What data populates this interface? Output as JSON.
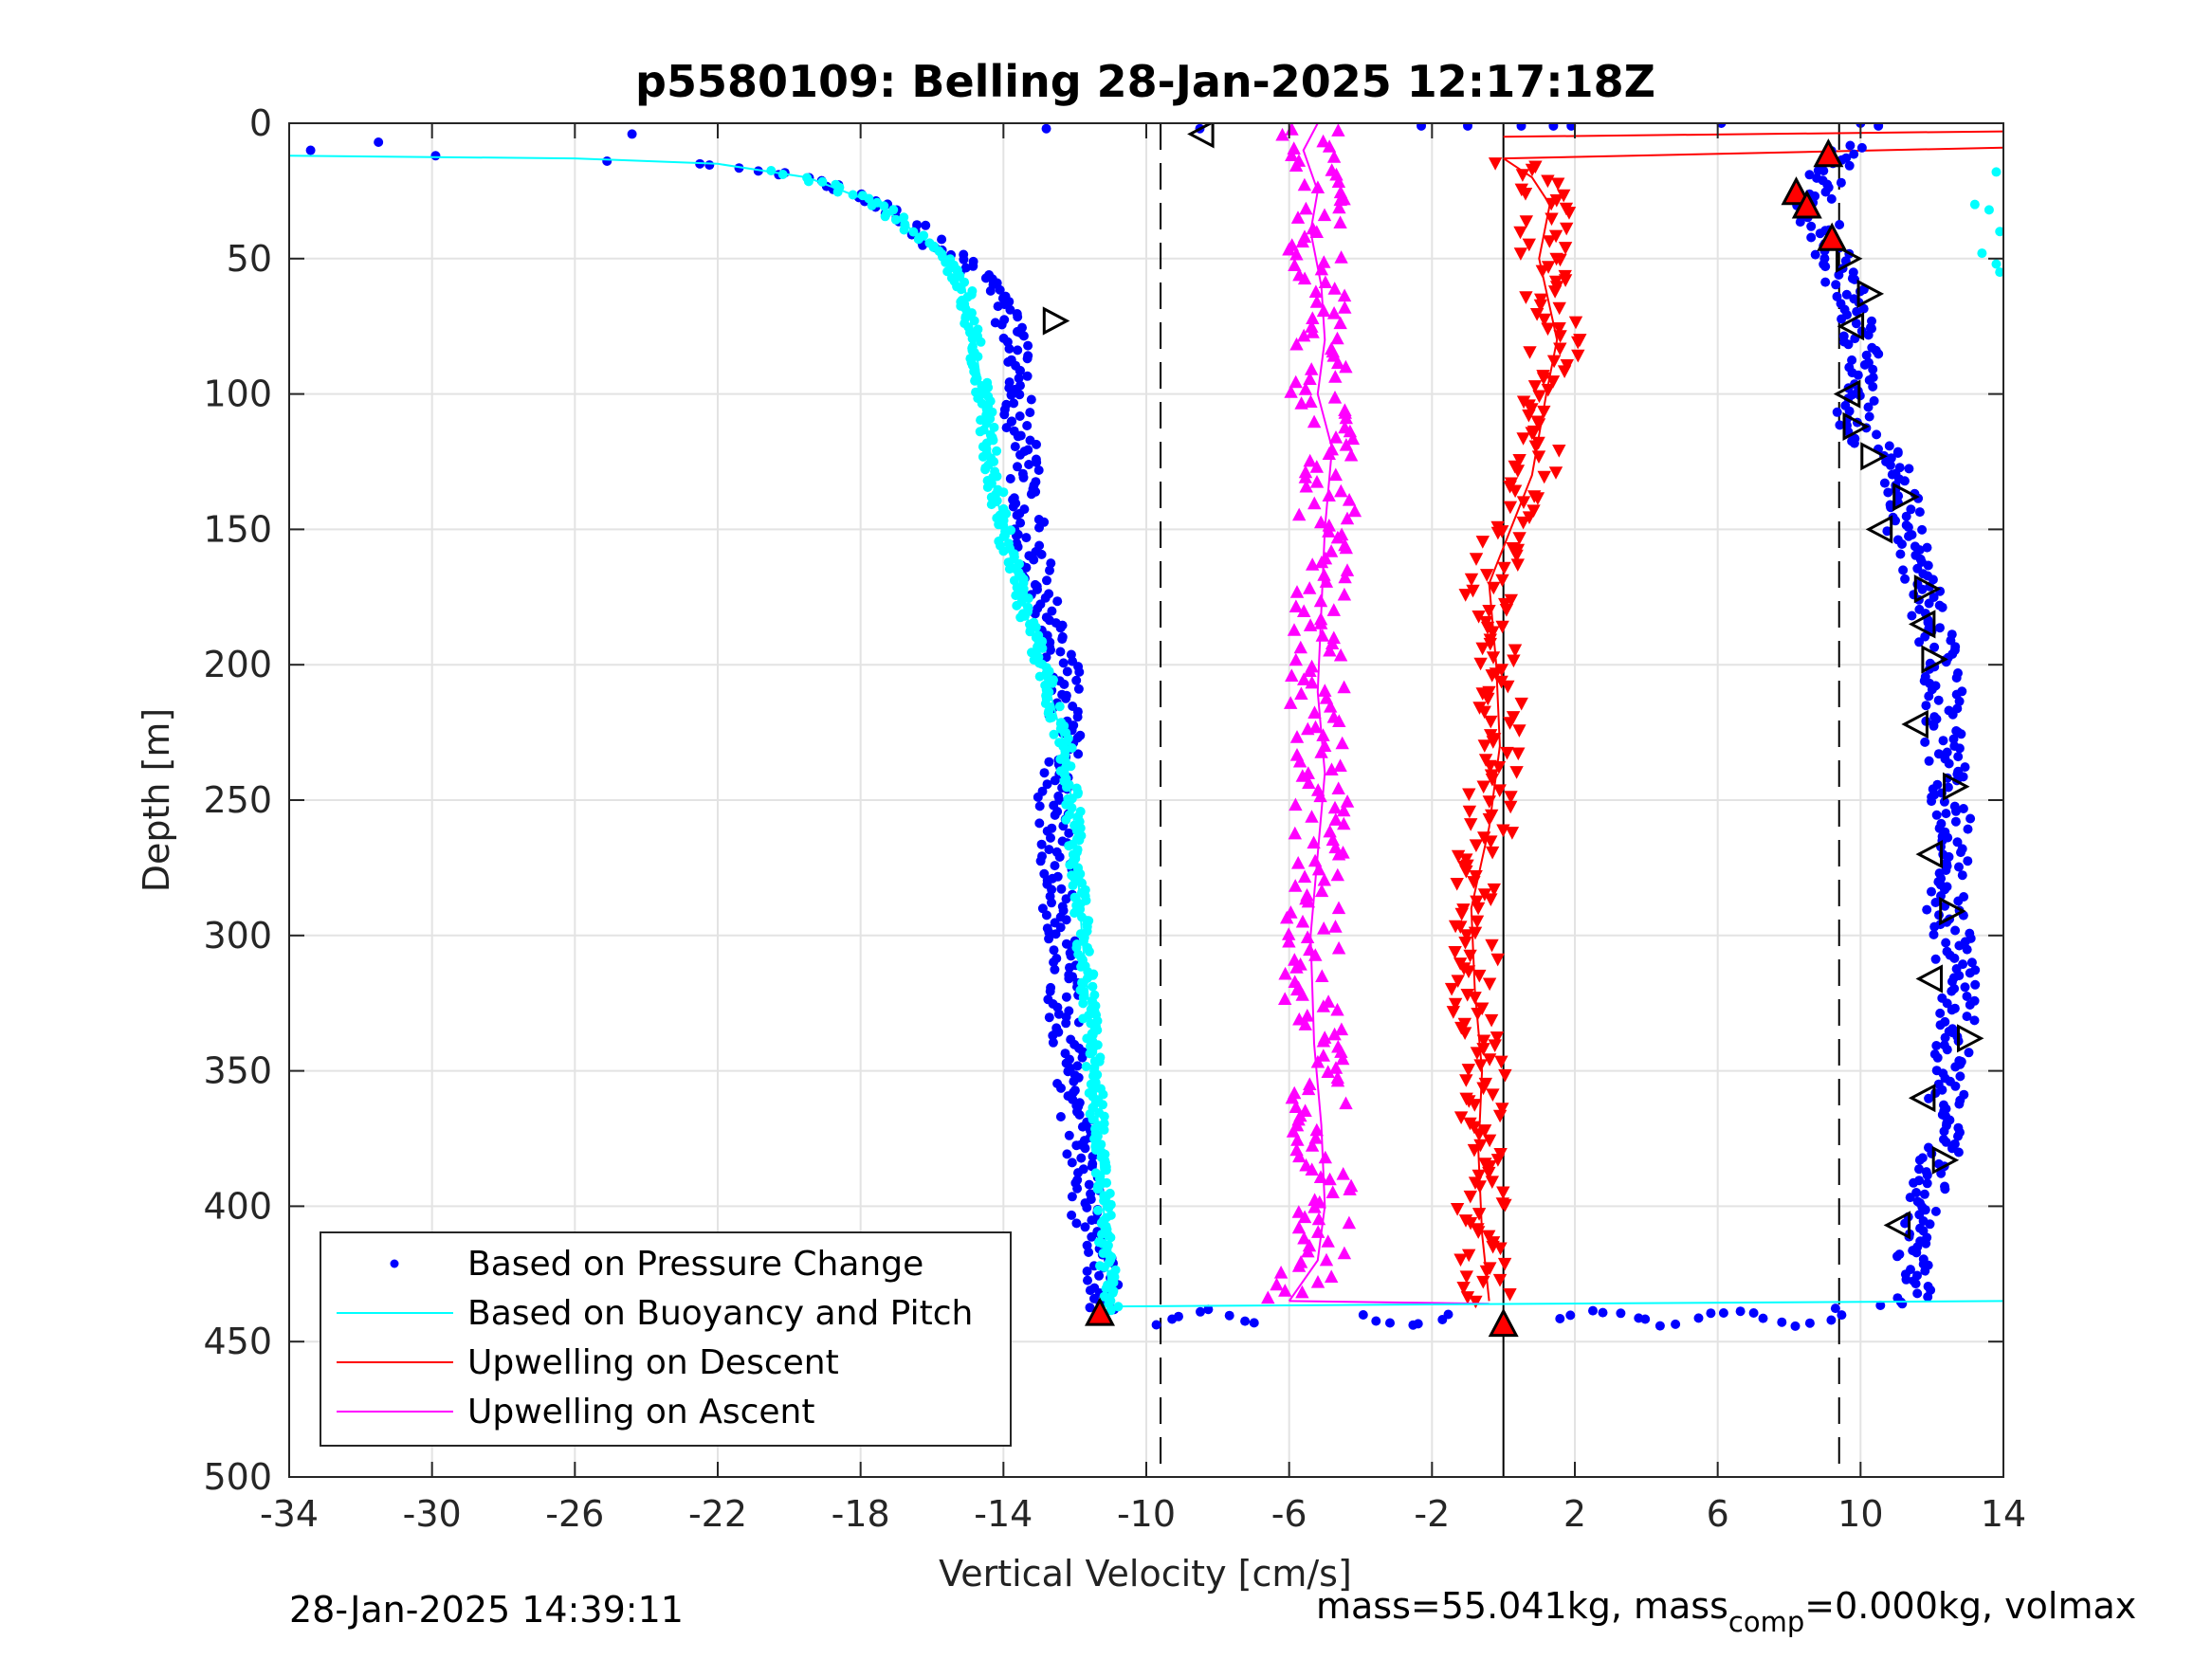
{
  "chart_data": {
    "type": "scatter",
    "title": "p5580109: Belling 28-Jan-2025 12:17:18Z",
    "xlabel": "Vertical Velocity [cm/s]",
    "ylabel": "Depth [m]",
    "xlim": [
      -34,
      14
    ],
    "ylim": [
      0,
      500
    ],
    "y_reversed": true,
    "grid": true,
    "legend_position": "bottom-left",
    "x_ticks": [
      "-34",
      "-30",
      "-26",
      "-22",
      "-18",
      "-14",
      "-10",
      "-6",
      "-2",
      "2",
      "6",
      "10",
      "14"
    ],
    "y_ticks": [
      "0",
      "50",
      "100",
      "150",
      "200",
      "250",
      "300",
      "350",
      "400",
      "450",
      "500"
    ],
    "reference_lines": [
      {
        "style": "dashed",
        "x": -9.6
      },
      {
        "style": "dashed",
        "x": 9.4
      },
      {
        "style": "solid",
        "x": 0
      }
    ],
    "series": [
      {
        "name": "Based on Pressure Change",
        "color": "#0000ff",
        "marker": "dot",
        "descent_profile": [
          [
            0,
            -34
          ],
          [
            10,
            -33.4
          ],
          [
            13,
            -30
          ],
          [
            14,
            -25
          ],
          [
            15,
            -22.5
          ],
          [
            20,
            -19.5
          ],
          [
            30,
            -17.5
          ],
          [
            45,
            -15.8
          ],
          [
            60,
            -14.2
          ],
          [
            75,
            -13.8
          ],
          [
            100,
            -13.6
          ],
          [
            130,
            -13.4
          ],
          [
            150,
            -13.3
          ],
          [
            180,
            -12.8
          ],
          [
            200,
            -12.3
          ],
          [
            230,
            -12.3
          ],
          [
            250,
            -12.6
          ],
          [
            280,
            -12.5
          ],
          [
            300,
            -12.4
          ],
          [
            330,
            -12.3
          ],
          [
            360,
            -12.0
          ],
          [
            400,
            -11.7
          ],
          [
            430,
            -11.2
          ],
          [
            440,
            -11.2
          ]
        ],
        "ascent_profile": [
          [
            440,
            8
          ],
          [
            435,
            11.5
          ],
          [
            410,
            11.6
          ],
          [
            380,
            12.2
          ],
          [
            350,
            12.5
          ],
          [
            320,
            12.8
          ],
          [
            290,
            12.4
          ],
          [
            260,
            12.6
          ],
          [
            230,
            12.3
          ],
          [
            200,
            12.3
          ],
          [
            175,
            11.8
          ],
          [
            150,
            11.2
          ],
          [
            130,
            11.2
          ],
          [
            110,
            9.8
          ],
          [
            95,
            10.2
          ],
          [
            75,
            10.0
          ],
          [
            55,
            9.4
          ],
          [
            40,
            9.0
          ],
          [
            30,
            8.6
          ],
          [
            15,
            9.3
          ],
          [
            5,
            10.0
          ],
          [
            0,
            10.2
          ]
        ]
      },
      {
        "name": "Based on Buoyancy and Pitch",
        "color": "#00ffff",
        "marker": "line+dot",
        "profile": [
          [
            12,
            -34
          ],
          [
            13,
            -26
          ],
          [
            15,
            -22
          ],
          [
            20,
            -19.5
          ],
          [
            30,
            -17.5
          ],
          [
            45,
            -16
          ],
          [
            60,
            -15.1
          ],
          [
            80,
            -14.8
          ],
          [
            100,
            -14.6
          ],
          [
            130,
            -14.3
          ],
          [
            150,
            -14.0
          ],
          [
            180,
            -13.4
          ],
          [
            200,
            -12.9
          ],
          [
            230,
            -12.3
          ],
          [
            260,
            -12.0
          ],
          [
            300,
            -11.8
          ],
          [
            340,
            -11.5
          ],
          [
            380,
            -11.3
          ],
          [
            420,
            -11.1
          ],
          [
            438,
            -11.0
          ]
        ],
        "bottom_turn": [
          [
            437,
            -11
          ],
          [
            435,
            14
          ]
        ]
      },
      {
        "name": "Upwelling on Descent",
        "color": "#ff0000",
        "marker": "down-triangle",
        "profile": [
          [
            13,
            0
          ],
          [
            20,
            0.8
          ],
          [
            30,
            1.3
          ],
          [
            50,
            1.0
          ],
          [
            80,
            1.5
          ],
          [
            100,
            1.2
          ],
          [
            130,
            0.8
          ],
          [
            150,
            0.2
          ],
          [
            170,
            -0.4
          ],
          [
            200,
            -0.2
          ],
          [
            230,
            -0.1
          ],
          [
            260,
            -0.4
          ],
          [
            290,
            -0.9
          ],
          [
            320,
            -0.8
          ],
          [
            350,
            -0.6
          ],
          [
            380,
            -0.7
          ],
          [
            410,
            -0.6
          ],
          [
            435,
            -0.4
          ]
        ]
      },
      {
        "name": "Upwelling on Ascent",
        "color": "#ff00ff",
        "marker": "up-triangle",
        "profile": [
          [
            435,
            -6.0
          ],
          [
            420,
            -5.2
          ],
          [
            400,
            -5.0
          ],
          [
            370,
            -5.1
          ],
          [
            340,
            -5.3
          ],
          [
            300,
            -5.4
          ],
          [
            270,
            -5.2
          ],
          [
            240,
            -5.0
          ],
          [
            210,
            -5.2
          ],
          [
            180,
            -5.1
          ],
          [
            150,
            -5.0
          ],
          [
            120,
            -4.8
          ],
          [
            100,
            -5.2
          ],
          [
            80,
            -5.0
          ],
          [
            60,
            -5.1
          ],
          [
            40,
            -5.4
          ],
          [
            25,
            -5.2
          ],
          [
            10,
            -5.6
          ],
          [
            0,
            -5.2
          ]
        ]
      }
    ],
    "hollow_triangle_markers": [
      {
        "x": -12.6,
        "y": 73,
        "dir": "right"
      },
      {
        "x": -8.4,
        "y": 4,
        "dir": "left"
      },
      {
        "x": 9.6,
        "y": 50,
        "dir": "right"
      },
      {
        "x": 10.2,
        "y": 63,
        "dir": "right"
      },
      {
        "x": 9.8,
        "y": 75,
        "dir": "left"
      },
      {
        "x": 9.7,
        "y": 100,
        "dir": "left"
      },
      {
        "x": 9.8,
        "y": 112,
        "dir": "right"
      },
      {
        "x": 10.3,
        "y": 123,
        "dir": "right"
      },
      {
        "x": 11.2,
        "y": 138,
        "dir": "right"
      },
      {
        "x": 10.6,
        "y": 150,
        "dir": "left"
      },
      {
        "x": 11.8,
        "y": 172,
        "dir": "right"
      },
      {
        "x": 11.8,
        "y": 185,
        "dir": "left"
      },
      {
        "x": 12.0,
        "y": 198,
        "dir": "right"
      },
      {
        "x": 11.6,
        "y": 222,
        "dir": "left"
      },
      {
        "x": 12.6,
        "y": 245,
        "dir": "right"
      },
      {
        "x": 12.0,
        "y": 270,
        "dir": "left"
      },
      {
        "x": 12.5,
        "y": 291,
        "dir": "right"
      },
      {
        "x": 12.0,
        "y": 316,
        "dir": "left"
      },
      {
        "x": 13.0,
        "y": 338,
        "dir": "right"
      },
      {
        "x": 11.8,
        "y": 360,
        "dir": "left"
      },
      {
        "x": 12.3,
        "y": 383,
        "dir": "right"
      },
      {
        "x": 11.1,
        "y": 407,
        "dir": "left"
      }
    ],
    "filled_up_markers": [
      {
        "x": -11.3,
        "y": 440
      },
      {
        "x": 0,
        "y": 444
      },
      {
        "x": 9.1,
        "y": 12
      },
      {
        "x": 8.2,
        "y": 26
      },
      {
        "x": 8.5,
        "y": 31
      },
      {
        "x": 9.2,
        "y": 43
      }
    ]
  },
  "footer": {
    "timestamp": "28-Jan-2025 14:39:11",
    "mass_text": "mass=55.041kg, mass",
    "mass_sub": "comp",
    "mass_tail": "=0.000kg, volmax"
  }
}
